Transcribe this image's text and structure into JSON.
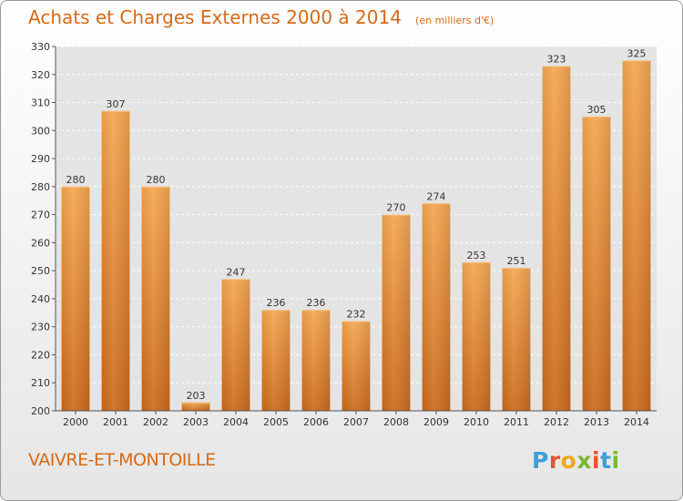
{
  "chart_data": {
    "type": "bar",
    "title": "Achats et Charges Externes 2000 à 2014",
    "subtitle": "(en milliers d'€)",
    "categories": [
      "2000",
      "2001",
      "2002",
      "2003",
      "2004",
      "2005",
      "2006",
      "2007",
      "2008",
      "2009",
      "2010",
      "2011",
      "2012",
      "2013",
      "2014"
    ],
    "values": [
      280,
      307,
      280,
      203,
      247,
      236,
      236,
      232,
      270,
      274,
      253,
      251,
      323,
      305,
      325
    ],
    "ylim": [
      200,
      330
    ],
    "yticks": [
      200,
      210,
      220,
      230,
      240,
      250,
      260,
      270,
      280,
      290,
      300,
      310,
      320,
      330
    ],
    "grid": true,
    "bar_color": "#f09a3e",
    "bar_color_dark": "#c9661a"
  },
  "footer": {
    "commune": "VAIVRE-ET-MONTOILLE",
    "logo": {
      "letters": [
        "P",
        "r",
        "o",
        "x",
        "i",
        "t",
        "i"
      ],
      "colors": [
        "#3aa0d8",
        "#e8532f",
        "#f2a81d",
        "#7cb832",
        "#e8532f",
        "#3aa0d8",
        "#7cb832"
      ]
    }
  }
}
